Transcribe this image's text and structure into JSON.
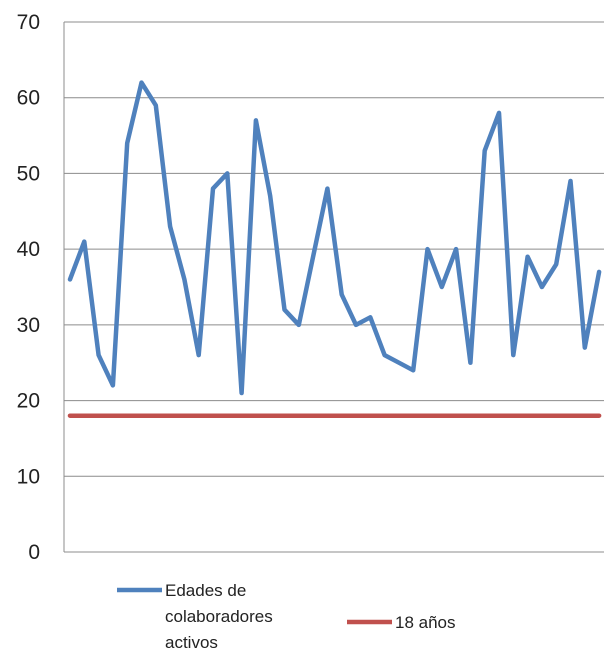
{
  "chart_data": {
    "type": "line",
    "title": "",
    "xlabel": "",
    "ylabel": "",
    "ylim": [
      0,
      70
    ],
    "y_ticks": [
      "0",
      "10",
      "20",
      "30",
      "40",
      "50",
      "60",
      "70"
    ],
    "grid": "horizontal",
    "legend_position": "bottom",
    "series": [
      {
        "name": "Edades de colaboradores activos",
        "name_lines": [
          "Edades de",
          "colaboradores",
          "activos"
        ],
        "color": "#4F81BD",
        "values": [
          36,
          41,
          26,
          22,
          54,
          62,
          59,
          43,
          36,
          26,
          48,
          50,
          21,
          57,
          47,
          32,
          30,
          39,
          48,
          34,
          30,
          31,
          26,
          25,
          24,
          40,
          35,
          40,
          25,
          53,
          58,
          26,
          39,
          35,
          38,
          49,
          27,
          37
        ]
      },
      {
        "name": "18 años",
        "name_lines": [
          "18 años"
        ],
        "color": "#C0504D",
        "values": [
          18,
          18,
          18,
          18,
          18,
          18,
          18,
          18,
          18,
          18,
          18,
          18,
          18,
          18,
          18,
          18,
          18,
          18,
          18,
          18,
          18,
          18,
          18,
          18,
          18,
          18,
          18,
          18,
          18,
          18,
          18,
          18,
          18,
          18,
          18,
          18,
          18,
          18
        ]
      }
    ]
  }
}
